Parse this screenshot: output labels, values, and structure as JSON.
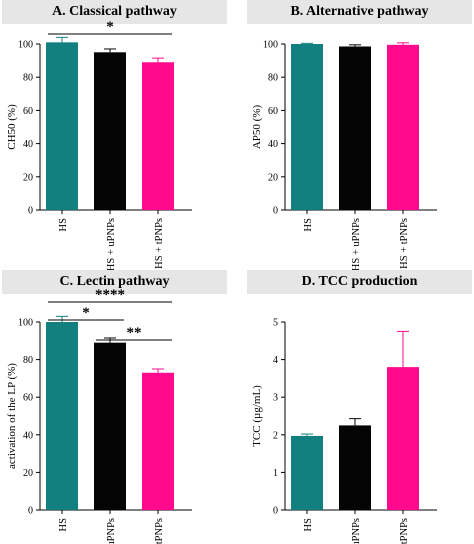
{
  "chart_data": [
    {
      "type": "bar",
      "title": "A. Classical pathway",
      "ylabel": "CH50 (%)",
      "categories": [
        "HS",
        "HS + uPNPs",
        "HS + tPNPs"
      ],
      "values": [
        101,
        95,
        89
      ],
      "errors": [
        3,
        2,
        2.5
      ],
      "colors": [
        "#138080",
        "#050505",
        "#ff0a8c"
      ],
      "ylim": [
        0,
        100
      ],
      "yticks": [
        0,
        20,
        40,
        60,
        80,
        100
      ],
      "significance": [
        {
          "from": 0,
          "to": 2,
          "label": "*"
        }
      ]
    },
    {
      "type": "bar",
      "title": "B. Alternative pathway",
      "ylabel": "AP50 (%)",
      "categories": [
        "HS",
        "HS + uPNPs",
        "HS + tPNPs"
      ],
      "values": [
        100,
        98.5,
        99.5
      ],
      "errors": [
        0.4,
        1,
        1.2
      ],
      "colors": [
        "#138080",
        "#050505",
        "#ff0a8c"
      ],
      "ylim": [
        0,
        100
      ],
      "yticks": [
        0,
        20,
        40,
        60,
        80,
        100
      ],
      "significance": []
    },
    {
      "type": "bar",
      "title": "C. Lectin pathway",
      "ylabel": "activation of the LP (%)",
      "categories": [
        "HS",
        "HS + uPNPs",
        "HS + tPNPs"
      ],
      "values": [
        100,
        89,
        73
      ],
      "errors": [
        3,
        2.5,
        2
      ],
      "colors": [
        "#138080",
        "#050505",
        "#ff0a8c"
      ],
      "ylim": [
        0,
        100
      ],
      "yticks": [
        0,
        20,
        40,
        60,
        80,
        100
      ],
      "significance": [
        {
          "from": 0,
          "to": 2,
          "label": "****"
        },
        {
          "from": 0,
          "to": 1,
          "label": "*"
        },
        {
          "from": 1,
          "to": 2,
          "label": "**"
        }
      ]
    },
    {
      "type": "bar",
      "title": "D. TCC production",
      "ylabel": "TCC (µg/mL)",
      "categories": [
        "HS",
        "HS + uPNPs",
        "HS + tPNPs"
      ],
      "values": [
        1.97,
        2.25,
        3.8
      ],
      "errors": [
        0.05,
        0.18,
        0.95
      ],
      "colors": [
        "#138080",
        "#050505",
        "#ff0a8c"
      ],
      "ylim": [
        0,
        5
      ],
      "yticks": [
        0,
        1,
        2,
        3,
        4,
        5
      ],
      "significance": []
    }
  ]
}
